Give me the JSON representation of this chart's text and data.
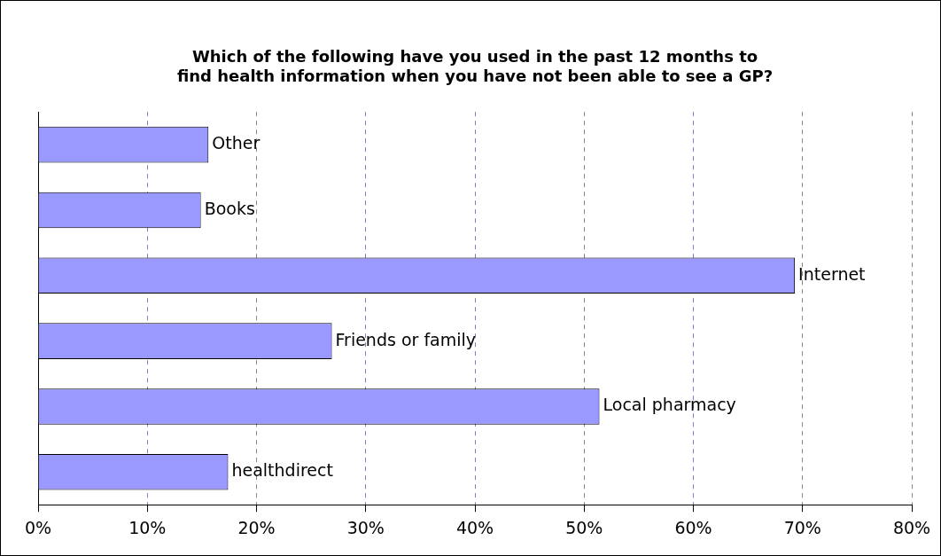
{
  "chart_data": {
    "type": "bar",
    "orientation": "horizontal",
    "title": "Which of the following have you used in the past 12 months to find health information when you have not been able to see a GP?",
    "categories": [
      "Other",
      "Books",
      "Internet",
      "Friends or family",
      "Local pharmacy",
      "healthdirect"
    ],
    "values": [
      15.6,
      14.9,
      69.3,
      26.9,
      51.4,
      17.4
    ],
    "color": "#9999ff",
    "xlim": [
      0,
      80
    ],
    "xticks": [
      {
        "value": 0,
        "label": "0%"
      },
      {
        "value": 10,
        "label": "10%"
      },
      {
        "value": 20,
        "label": "20%"
      },
      {
        "value": 30,
        "label": "30%"
      },
      {
        "value": 40,
        "label": "40%"
      },
      {
        "value": 50,
        "label": "50%"
      },
      {
        "value": 60,
        "label": "60%"
      },
      {
        "value": 70,
        "label": "70%"
      },
      {
        "value": 80,
        "label": "80%"
      }
    ],
    "grid": "x",
    "legend": false
  }
}
